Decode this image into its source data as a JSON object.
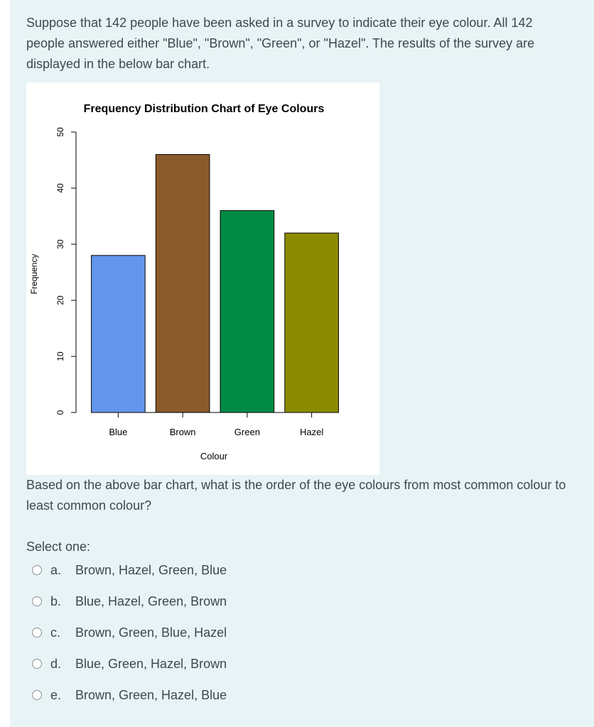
{
  "question": {
    "intro": "Suppose that 142 people have been asked in a survey to indicate their eye colour. All 142 people answered either \"Blue\", \"Brown\", \"Green\", or \"Hazel\". The results of the survey are displayed in the below bar chart.",
    "prompt": "Based on the above bar chart, what is the order of the eye colours from most common colour to least common colour?",
    "select_label": "Select one:",
    "options": [
      {
        "letter": "a.",
        "text": "Brown, Hazel, Green, Blue"
      },
      {
        "letter": "b.",
        "text": "Blue, Hazel, Green, Brown"
      },
      {
        "letter": "c.",
        "text": "Brown, Green, Blue, Hazel"
      },
      {
        "letter": "d.",
        "text": "Blue, Green, Hazel, Brown"
      },
      {
        "letter": "e.",
        "text": "Brown, Green, Hazel, Blue"
      }
    ]
  },
  "chart_data": {
    "type": "bar",
    "title": "Frequency Distribution Chart of Eye Colours",
    "xlabel": "Colour",
    "ylabel": "Frequency",
    "categories": [
      "Blue",
      "Brown",
      "Green",
      "Hazel"
    ],
    "values": [
      28,
      46,
      36,
      32
    ],
    "colors": [
      "#6495ed",
      "#8b5a2b",
      "#008b45",
      "#8b8b00"
    ],
    "ylim": [
      0,
      50
    ],
    "yticks": [
      0,
      10,
      20,
      30,
      40,
      50
    ],
    "grid": false
  }
}
